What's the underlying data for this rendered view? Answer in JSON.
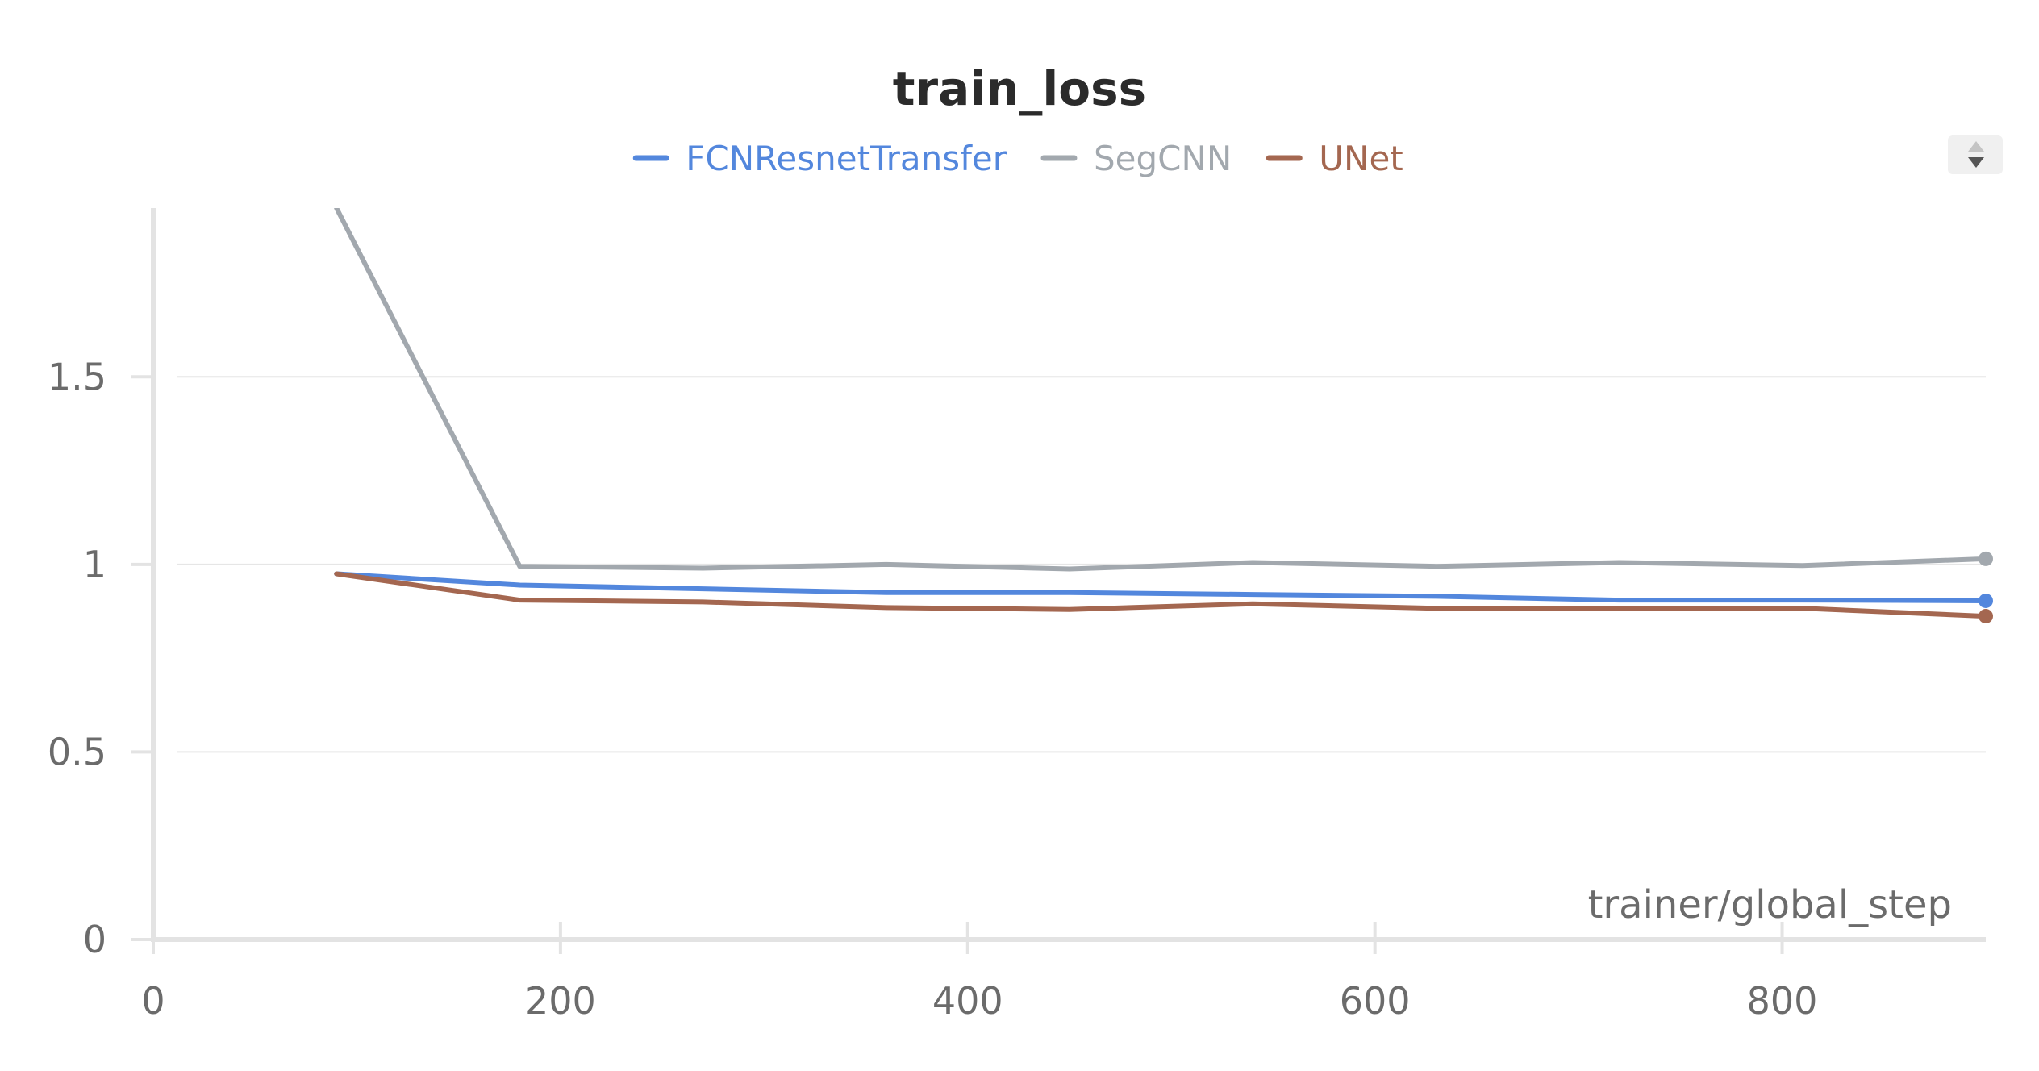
{
  "chart_data": {
    "type": "line",
    "title": "train_loss",
    "xlabel": "trainer/global_step",
    "ylabel": "",
    "xlim": [
      0,
      900
    ],
    "ylim": [
      0,
      1.95
    ],
    "x_ticks": [
      0,
      200,
      400,
      600,
      800
    ],
    "x_tick_labels": [
      "0",
      "200",
      "400",
      "600",
      "800"
    ],
    "y_ticks": [
      0,
      0.5,
      1,
      1.5
    ],
    "y_tick_labels": [
      "0",
      "0.5",
      "1",
      "1.5"
    ],
    "grid": true,
    "legend_position": "top-center",
    "series": [
      {
        "name": "FCNResnetTransfer",
        "color": "#5387dd",
        "x": [
          90,
          180,
          270,
          360,
          450,
          540,
          630,
          720,
          810,
          900
        ],
        "y": [
          0.975,
          0.945,
          0.935,
          0.925,
          0.925,
          0.92,
          0.915,
          0.905,
          0.905,
          0.903
        ]
      },
      {
        "name": "SegCNN",
        "color": "#a2a8ae",
        "x": [
          90,
          180,
          270,
          360,
          450,
          540,
          630,
          720,
          810,
          900
        ],
        "y": [
          1.95,
          0.995,
          0.99,
          1.0,
          0.988,
          1.005,
          0.995,
          1.005,
          0.997,
          1.015
        ]
      },
      {
        "name": "UNet",
        "color": "#a46750",
        "x": [
          90,
          180,
          270,
          360,
          450,
          540,
          630,
          720,
          810,
          900
        ],
        "y": [
          0.975,
          0.905,
          0.9,
          0.885,
          0.88,
          0.895,
          0.883,
          0.882,
          0.883,
          0.862
        ]
      }
    ]
  },
  "legend_scroll_icon": "scroll-up-down-icon"
}
